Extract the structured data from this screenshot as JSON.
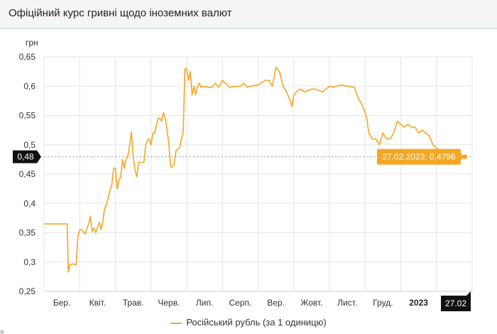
{
  "header": {
    "title": "Офіційний курс гривні щодо іноземних валют"
  },
  "chart_data": {
    "type": "line",
    "ylabel": "грн",
    "ylim": [
      0.25,
      0.65
    ],
    "yticks": [
      0.25,
      0.3,
      0.35,
      0.4,
      0.45,
      0.5,
      0.55,
      0.6,
      0.65
    ],
    "ytick_labels": [
      "0,25",
      "0,3",
      "0,35",
      "0,4",
      "0,45",
      "0,5",
      "0,55",
      "0,6",
      "0,65"
    ],
    "x_ticks": [
      "Бер.",
      "Квіт.",
      "Трав.",
      "Черв.",
      "Лип.",
      "Серп.",
      "Вер.",
      "Жовт.",
      "Лист.",
      "Груд.",
      "2023"
    ],
    "x_ticks_bold": [
      "2023"
    ],
    "xlim": [
      0,
      12
    ],
    "grid": true,
    "legend_position": "bottom",
    "series": [
      {
        "name": "Російський рубль (за 1 одиницю)",
        "color": "#f5a623",
        "x": [
          0,
          0.35,
          0.65,
          0.68,
          0.72,
          0.8,
          0.9,
          0.95,
          1.0,
          1.05,
          1.15,
          1.25,
          1.3,
          1.35,
          1.4,
          1.45,
          1.5,
          1.55,
          1.6,
          1.65,
          1.7,
          1.75,
          1.8,
          1.85,
          1.9,
          1.95,
          2.0,
          2.05,
          2.1,
          2.15,
          2.2,
          2.25,
          2.3,
          2.35,
          2.4,
          2.45,
          2.5,
          2.55,
          2.6,
          2.65,
          2.7,
          2.8,
          2.85,
          2.9,
          2.95,
          3.0,
          3.05,
          3.1,
          3.2,
          3.25,
          3.3,
          3.35,
          3.4,
          3.45,
          3.5,
          3.55,
          3.6,
          3.65,
          3.7,
          3.8,
          3.85,
          3.9,
          3.95,
          4.0,
          4.05,
          4.1,
          4.15,
          4.2,
          4.25,
          4.3,
          4.35,
          4.4,
          4.45,
          4.5,
          4.55,
          4.6,
          4.7,
          4.8,
          4.9,
          5.0,
          5.2,
          5.4,
          5.5,
          5.6,
          5.7,
          5.8,
          6.0,
          6.2,
          6.3,
          6.4,
          6.5,
          6.6,
          6.7,
          6.8,
          6.9,
          6.95,
          7.0,
          7.1,
          7.2,
          7.3,
          7.5,
          7.6,
          7.8,
          8.0,
          8.1,
          8.3,
          8.5,
          8.7,
          8.8,
          8.9,
          9.0,
          9.05,
          9.1,
          9.2,
          9.3,
          9.4,
          9.5,
          9.6,
          9.7,
          9.8,
          9.9,
          10.0,
          10.1,
          10.2,
          10.3,
          10.4,
          10.5,
          10.6,
          10.7,
          10.8,
          10.9,
          11.0,
          11.1,
          11.2,
          11.3,
          11.4,
          11.5,
          11.6,
          11.7,
          11.8
        ],
        "y": [
          0.365,
          0.365,
          0.365,
          0.283,
          0.295,
          0.297,
          0.295,
          0.345,
          0.355,
          0.355,
          0.348,
          0.365,
          0.378,
          0.352,
          0.358,
          0.35,
          0.36,
          0.368,
          0.355,
          0.37,
          0.392,
          0.398,
          0.41,
          0.422,
          0.432,
          0.46,
          0.46,
          0.425,
          0.44,
          0.445,
          0.475,
          0.46,
          0.475,
          0.48,
          0.5,
          0.522,
          0.48,
          0.458,
          0.445,
          0.47,
          0.47,
          0.47,
          0.5,
          0.507,
          0.51,
          0.5,
          0.52,
          0.52,
          0.545,
          0.545,
          0.54,
          0.555,
          0.545,
          0.525,
          0.5,
          0.462,
          0.462,
          0.468,
          0.49,
          0.495,
          0.51,
          0.52,
          0.63,
          0.63,
          0.61,
          0.625,
          0.585,
          0.6,
          0.585,
          0.6,
          0.605,
          0.598,
          0.6,
          0.598,
          0.6,
          0.598,
          0.598,
          0.605,
          0.598,
          0.61,
          0.598,
          0.6,
          0.6,
          0.605,
          0.598,
          0.6,
          0.602,
          0.61,
          0.61,
          0.6,
          0.632,
          0.625,
          0.6,
          0.59,
          0.575,
          0.565,
          0.585,
          0.592,
          0.595,
          0.59,
          0.595,
          0.595,
          0.59,
          0.6,
          0.598,
          0.602,
          0.6,
          0.598,
          0.58,
          0.57,
          0.555,
          0.545,
          0.52,
          0.51,
          0.51,
          0.5,
          0.52,
          0.51,
          0.51,
          0.52,
          0.54,
          0.535,
          0.53,
          0.535,
          0.53,
          0.53,
          0.52,
          0.525,
          0.52,
          0.515,
          0.5,
          0.495,
          0.49,
          0.485,
          0.482,
          0.48,
          0.4796,
          0.4796,
          0.4796,
          0.4796
        ]
      }
    ],
    "crosshair": {
      "y_label": "0,48",
      "x_label": "27.02"
    },
    "tooltip": {
      "text": "27.02.2023: 0,4796"
    }
  }
}
